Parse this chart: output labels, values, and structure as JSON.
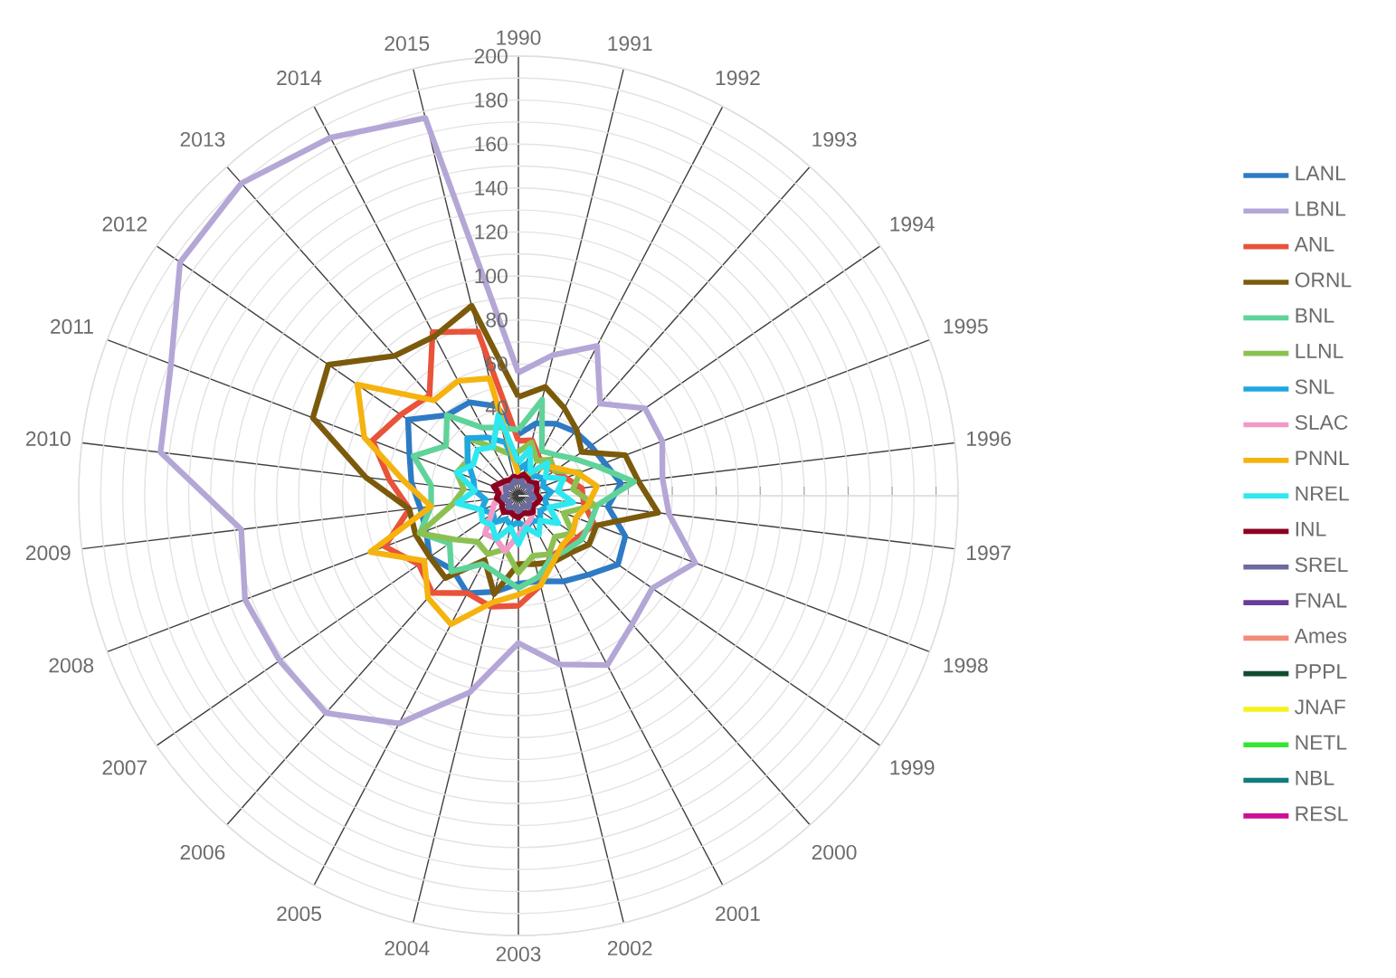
{
  "chart_data": {
    "type": "radar",
    "categories": [
      "1990",
      "1991",
      "1992",
      "1993",
      "1994",
      "1995",
      "1996",
      "1997",
      "1998",
      "1999",
      "2000",
      "2001",
      "2002",
      "2003",
      "2004",
      "2005",
      "2006",
      "2007",
      "2008",
      "2009",
      "2010",
      "2011",
      "2012",
      "2013",
      "2014",
      "2015"
    ],
    "ylim": [
      0,
      200
    ],
    "yticks": [
      40,
      60,
      80,
      100,
      120,
      140,
      160,
      180,
      200
    ],
    "grid": true,
    "legend": "right",
    "series": [
      {
        "name": "LANL",
        "color": "#2e7bc4",
        "values": [
          28,
          34,
          37,
          39,
          40,
          42,
          47,
          41,
          52,
          55,
          48,
          44,
          40,
          40,
          45,
          50,
          45,
          49,
          45,
          45,
          49,
          53,
          61,
          49,
          48,
          42
        ]
      },
      {
        "name": "LBNL",
        "color": "#b4a7d6",
        "values": [
          56,
          66,
          77,
          56,
          70,
          70,
          66,
          69,
          86,
          74,
          78,
          87,
          79,
          67,
          92,
          117,
          132,
          132,
          133,
          127,
          164,
          169,
          187,
          190,
          184,
          177
        ]
      },
      {
        "name": "ANL",
        "color": "#e8533a",
        "values": [
          25,
          26,
          20,
          18,
          20,
          23,
          29,
          30,
          37,
          33,
          32,
          31,
          42,
          50,
          52,
          50,
          59,
          55,
          65,
          50,
          59,
          71,
          65,
          61,
          84,
          77
        ]
      },
      {
        "name": "ORNL",
        "color": "#7b5a0c",
        "values": [
          45,
          51,
          45,
          40,
          35,
          52,
          55,
          64,
          38,
          39,
          35,
          34,
          32,
          31,
          46,
          33,
          50,
          49,
          50,
          50,
          70,
          100,
          105,
          85,
          82,
          89
        ]
      },
      {
        "name": "BNL",
        "color": "#5fd39a",
        "values": [
          30,
          45,
          23,
          25,
          30,
          38,
          53,
          36,
          35,
          35,
          33,
          32,
          38,
          42,
          37,
          35,
          46,
          38,
          48,
          40,
          40,
          51,
          40,
          49,
          35,
          32
        ]
      },
      {
        "name": "LLNL",
        "color": "#8cc152",
        "values": [
          20,
          25,
          18,
          22,
          20,
          30,
          25,
          35,
          22,
          30,
          25,
          30,
          28,
          35,
          25,
          30,
          28,
          35,
          48,
          30,
          25,
          30,
          28,
          35,
          25,
          20
        ]
      },
      {
        "name": "SNL",
        "color": "#1fa7e0",
        "values": [
          12,
          15,
          10,
          12,
          14,
          12,
          15,
          12,
          14,
          12,
          15,
          13,
          15,
          12,
          14,
          12,
          16,
          14,
          18,
          15,
          20,
          22,
          28,
          35,
          30,
          25
        ]
      },
      {
        "name": "SLAC",
        "color": "#f29ac6",
        "values": [
          8,
          8,
          7,
          8,
          8,
          7,
          8,
          8,
          7,
          8,
          10,
          12,
          14,
          18,
          26,
          22,
          23,
          15,
          12,
          10,
          8,
          8,
          8,
          8,
          8,
          8
        ]
      },
      {
        "name": "PNNL",
        "color": "#f5b30f",
        "values": [
          10,
          8,
          12,
          18,
          22,
          29,
          36,
          32,
          28,
          30,
          30,
          34,
          42,
          45,
          50,
          66,
          62,
          52,
          72,
          40,
          52,
          75,
          89,
          58,
          59,
          55
        ]
      },
      {
        "name": "NREL",
        "color": "#2ee8f0",
        "values": [
          15,
          22,
          12,
          20,
          15,
          22,
          18,
          25,
          15,
          22,
          15,
          20,
          15,
          22,
          15,
          22,
          18,
          20,
          18,
          28,
          20,
          30,
          25,
          28,
          25,
          38
        ]
      },
      {
        "name": "INL",
        "color": "#8b0020",
        "values": [
          8,
          10,
          9,
          8,
          10,
          9,
          8,
          10,
          9,
          8,
          10,
          9,
          8,
          10,
          9,
          8,
          10,
          9,
          8,
          10,
          9,
          12,
          10,
          9,
          8,
          9
        ]
      },
      {
        "name": "SREL",
        "color": "#6b6b9e",
        "values": [
          6,
          7,
          5,
          6,
          7,
          5,
          6,
          7,
          5,
          6,
          7,
          5,
          6,
          7,
          5,
          6,
          7,
          5,
          6,
          7,
          5,
          6,
          7,
          5,
          6,
          7
        ]
      },
      {
        "name": "FNAL",
        "color": "#6a3d9a",
        "values": [
          null,
          null,
          null,
          null,
          null,
          null,
          null,
          null,
          null,
          null,
          null,
          null,
          null,
          null,
          null,
          null,
          null,
          null,
          null,
          null,
          null,
          null,
          null,
          null,
          null,
          null
        ]
      },
      {
        "name": "Ames",
        "color": "#f08c79",
        "values": [
          null,
          null,
          null,
          null,
          null,
          null,
          null,
          null,
          null,
          null,
          null,
          null,
          null,
          null,
          null,
          null,
          null,
          null,
          null,
          null,
          null,
          null,
          null,
          null,
          null,
          null
        ]
      },
      {
        "name": "PPPL",
        "color": "#0f4d2e",
        "values": [
          null,
          null,
          null,
          null,
          null,
          null,
          null,
          null,
          null,
          null,
          null,
          null,
          null,
          null,
          null,
          null,
          null,
          null,
          null,
          null,
          null,
          null,
          null,
          null,
          null,
          null
        ]
      },
      {
        "name": "JNAF",
        "color": "#f5f21a",
        "values": [
          null,
          null,
          null,
          null,
          null,
          null,
          null,
          null,
          null,
          null,
          null,
          null,
          null,
          null,
          null,
          null,
          null,
          null,
          null,
          null,
          null,
          null,
          null,
          null,
          null,
          null
        ]
      },
      {
        "name": "NETL",
        "color": "#33e633",
        "values": [
          null,
          null,
          null,
          null,
          null,
          null,
          null,
          null,
          null,
          null,
          null,
          null,
          null,
          null,
          null,
          null,
          null,
          null,
          null,
          null,
          null,
          null,
          null,
          null,
          null,
          null
        ]
      },
      {
        "name": "NBL",
        "color": "#137b7b",
        "values": [
          null,
          null,
          null,
          null,
          null,
          null,
          null,
          null,
          null,
          null,
          null,
          null,
          null,
          null,
          null,
          null,
          null,
          null,
          null,
          null,
          null,
          null,
          null,
          null,
          null,
          null
        ]
      },
      {
        "name": "RESL",
        "color": "#cc0f96",
        "values": [
          null,
          null,
          null,
          null,
          null,
          null,
          null,
          null,
          null,
          null,
          null,
          null,
          null,
          null,
          null,
          null,
          null,
          null,
          null,
          null,
          null,
          null,
          null,
          null,
          null,
          null
        ]
      }
    ]
  }
}
